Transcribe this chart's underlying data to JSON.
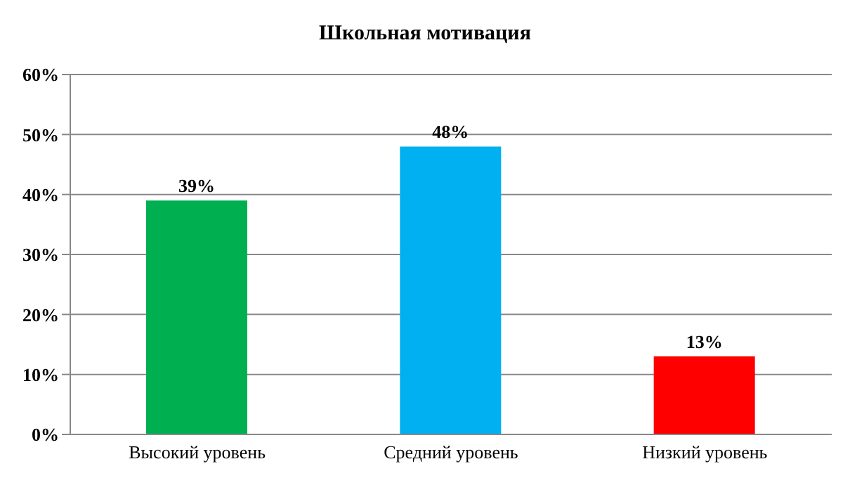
{
  "chart_data": {
    "type": "bar",
    "title": "Школьная мотивация",
    "categories": [
      "Высокий уровень",
      "Средний уровень",
      "Низкий уровень"
    ],
    "values": [
      39,
      48,
      13
    ],
    "colors": [
      "#00b050",
      "#00b0f0",
      "#ff0000"
    ],
    "value_labels": [
      "39%",
      "48%",
      "13%"
    ],
    "ylim": [
      0,
      60
    ],
    "yticks": [
      {
        "value": 0,
        "label": "0%"
      },
      {
        "value": 10,
        "label": "10%"
      },
      {
        "value": 20,
        "label": "20%"
      },
      {
        "value": 30,
        "label": "30%"
      },
      {
        "value": 40,
        "label": "40%"
      },
      {
        "value": 50,
        "label": "50%"
      },
      {
        "value": 60,
        "label": "60%"
      }
    ],
    "grid": "y",
    "legend": false
  }
}
